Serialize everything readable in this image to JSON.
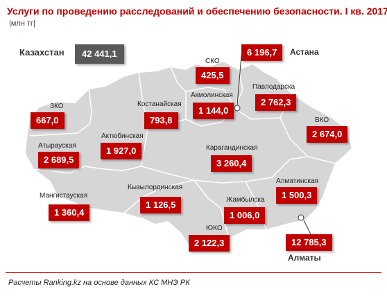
{
  "title": "Услуги по проведению расследований и обеспечению безопасности. I кв. 2017",
  "unit": "млн тг",
  "footer": "Расчеты Ranking.kz на основе данных КС МНЭ РК",
  "colors": {
    "accent": "#c00000",
    "map_fill": "#d6d6d6",
    "map_border": "#ffffff",
    "total_box": "#595959"
  },
  "kazakhstan": {
    "label": "Казахстан",
    "value": "42 441,1"
  },
  "regions": [
    {
      "id": "astana",
      "name": "Астана",
      "value": "6 196,7"
    },
    {
      "id": "sko",
      "name": "СКО",
      "value": "425,5"
    },
    {
      "id": "akmola",
      "name": "Акмолинская",
      "value": "1 144,0"
    },
    {
      "id": "pavlodar",
      "name": "Павлодарска",
      "value": "2 762,3"
    },
    {
      "id": "kostanay",
      "name": "Костанайская",
      "value": "793,8"
    },
    {
      "id": "zko",
      "name": "ЗКО",
      "value": "667,0"
    },
    {
      "id": "vko",
      "name": "ВКО",
      "value": "2 674,0"
    },
    {
      "id": "aktobe",
      "name": "Актюбинская",
      "value": "1 927,0"
    },
    {
      "id": "atyrau",
      "name": "Атырауская",
      "value": "2 689,5"
    },
    {
      "id": "karaganda",
      "name": "Карагандинская",
      "value": "3 260,4"
    },
    {
      "id": "kyzylorda",
      "name": "Кызылординская",
      "value": "1 126,5"
    },
    {
      "id": "almaty_obl",
      "name": "Алматинская",
      "value": "1 500,3"
    },
    {
      "id": "mangystau",
      "name": "Мангистауская",
      "value": "1 360,4"
    },
    {
      "id": "zhambyl",
      "name": "Жамбылска",
      "value": "1 006,0"
    },
    {
      "id": "yuko",
      "name": "ЮКО",
      "value": "2 122,3"
    },
    {
      "id": "almaty_city",
      "name": "Алматы",
      "value": "12 785,3"
    }
  ]
}
